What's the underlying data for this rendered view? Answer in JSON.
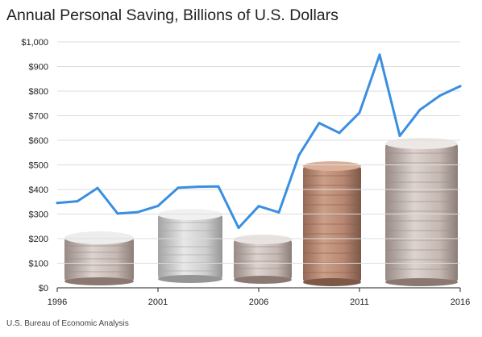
{
  "chart_data": {
    "type": "line",
    "title": "Annual Personal Saving, Billions of U.S. Dollars",
    "xlabel": "",
    "ylabel": "",
    "x": [
      1996,
      1997,
      1998,
      1999,
      2000,
      2001,
      2002,
      2003,
      2004,
      2005,
      2006,
      2007,
      2008,
      2009,
      2010,
      2011,
      2012,
      2013,
      2014,
      2015,
      2016
    ],
    "series": [
      {
        "name": "",
        "color": "#3a8fe0",
        "values": [
          345,
          352,
          406,
          302,
          308,
          333,
          407,
          411,
          412,
          244,
          332,
          307,
          540,
          670,
          630,
          712,
          948,
          618,
          724,
          782,
          820
        ]
      }
    ],
    "xlim": [
      1996,
      2016
    ],
    "ylim": [
      0,
      1000
    ],
    "x_ticks": [
      1996,
      2001,
      2006,
      2011,
      2016
    ],
    "x_tick_labels": [
      "1996",
      "2001",
      "2006",
      "2011",
      "2016"
    ],
    "y_ticks": [
      0,
      100,
      200,
      300,
      400,
      500,
      600,
      700,
      800,
      900,
      1000
    ],
    "y_tick_labels": [
      "$0",
      "$100",
      "$200",
      "$300",
      "$400",
      "$500",
      "$600",
      "$700",
      "$800",
      "$900",
      "$1,000"
    ],
    "grid": "horizontal",
    "legend": "none",
    "background_image": "stacks of coins",
    "gridline_color": "#dddddd",
    "axis_color": "#222222"
  },
  "source": "U.S. Bureau of Economic Analysis"
}
